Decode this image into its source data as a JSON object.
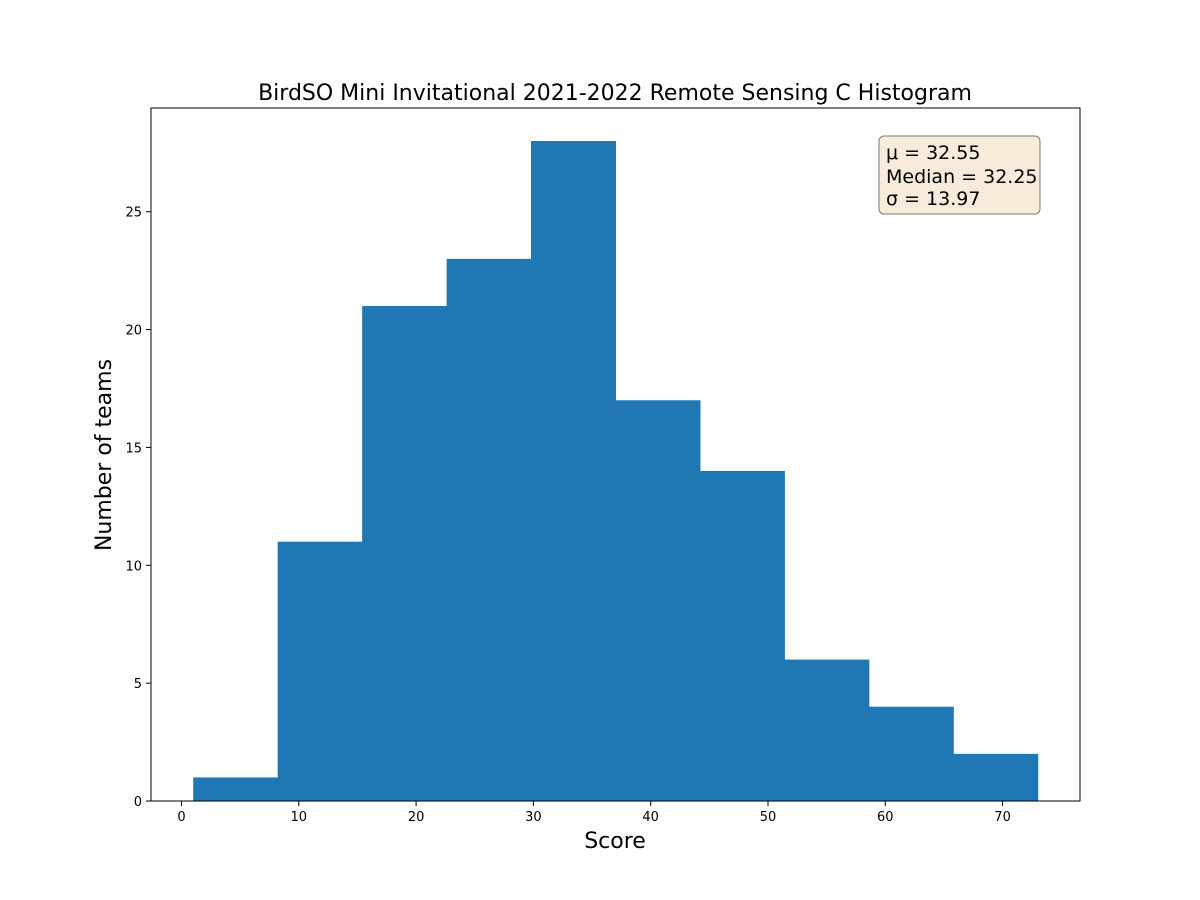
{
  "chart_data": {
    "type": "bar",
    "title": "BirdSO Mini Invitational 2021-2022 Remote Sensing C Histogram",
    "xlabel": "Score",
    "ylabel": "Number of teams",
    "bin_edges": [
      1,
      8.2,
      15.4,
      22.6,
      29.8,
      37.0,
      44.2,
      51.4,
      58.6,
      65.8,
      73.0
    ],
    "values": [
      1,
      11,
      21,
      23,
      28,
      17,
      14,
      6,
      4,
      2
    ],
    "xlim": [
      -2.6,
      76.6
    ],
    "ylim": [
      0,
      29.4
    ],
    "xticks": [
      0,
      10,
      20,
      30,
      40,
      50,
      60,
      70
    ],
    "yticks": [
      0,
      5,
      10,
      15,
      20,
      25
    ],
    "grid": false,
    "legend": "none",
    "bar_color": "#1f77b4",
    "stats": {
      "mean_label": "μ = 32.55",
      "median_label": "Median = 32.25",
      "sigma_label": "σ = 13.97",
      "placement": "top-right",
      "box_fill": "#f7ecd9",
      "box_stroke": "#7a7a7a"
    }
  }
}
